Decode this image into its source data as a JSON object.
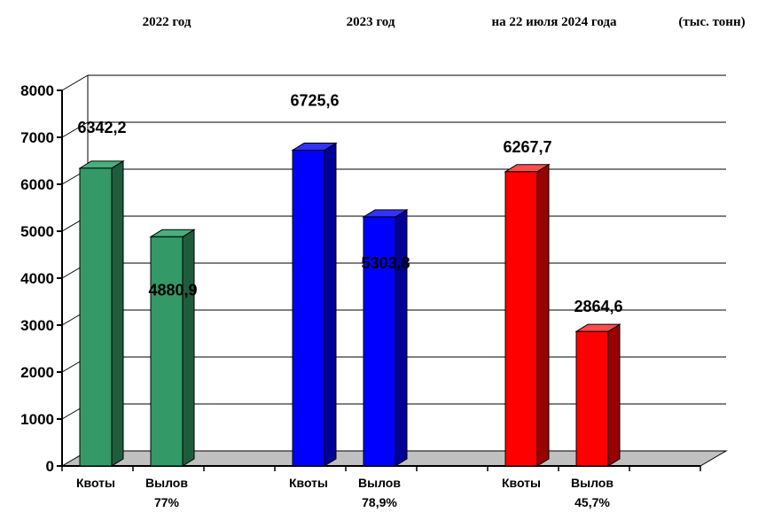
{
  "chart_data": {
    "type": "bar",
    "header": {
      "group_titles": [
        "2022  год",
        "2023  год",
        "на 22 июля 2024 года"
      ],
      "units": "(тыс. тонн)"
    },
    "yticks": [
      "0",
      "1000",
      "2000",
      "3000",
      "4000",
      "5000",
      "6000",
      "7000",
      "8000"
    ],
    "ylim": [
      0,
      8000
    ],
    "grid": true,
    "groups": [
      {
        "color": "#339966",
        "side_color": "#1f5c3d",
        "top_color": "#47b07c",
        "bars": [
          {
            "category": "Квоты",
            "sublabel": "",
            "value": 6342.2,
            "value_label": "6342,2"
          },
          {
            "category": "Вылов",
            "sublabel": "77%",
            "value": 4880.9,
            "value_label": "4880,9"
          }
        ]
      },
      {
        "color": "#0000ff",
        "side_color": "#000099",
        "top_color": "#3333ff",
        "bars": [
          {
            "category": "Квоты",
            "sublabel": "",
            "value": 6725.6,
            "value_label": "6725,6"
          },
          {
            "category": "Вылов",
            "sublabel": "78,9%",
            "value": 5303.8,
            "value_label": "5303,8"
          }
        ]
      },
      {
        "color": "#ff0000",
        "side_color": "#990000",
        "top_color": "#ff4d4d",
        "bars": [
          {
            "category": "Квоты",
            "sublabel": "",
            "value": 6267.7,
            "value_label": "6267,7"
          },
          {
            "category": "Вылов",
            "sublabel": "45,7%",
            "value": 2864.6,
            "value_label": "2864,6"
          }
        ]
      }
    ]
  }
}
